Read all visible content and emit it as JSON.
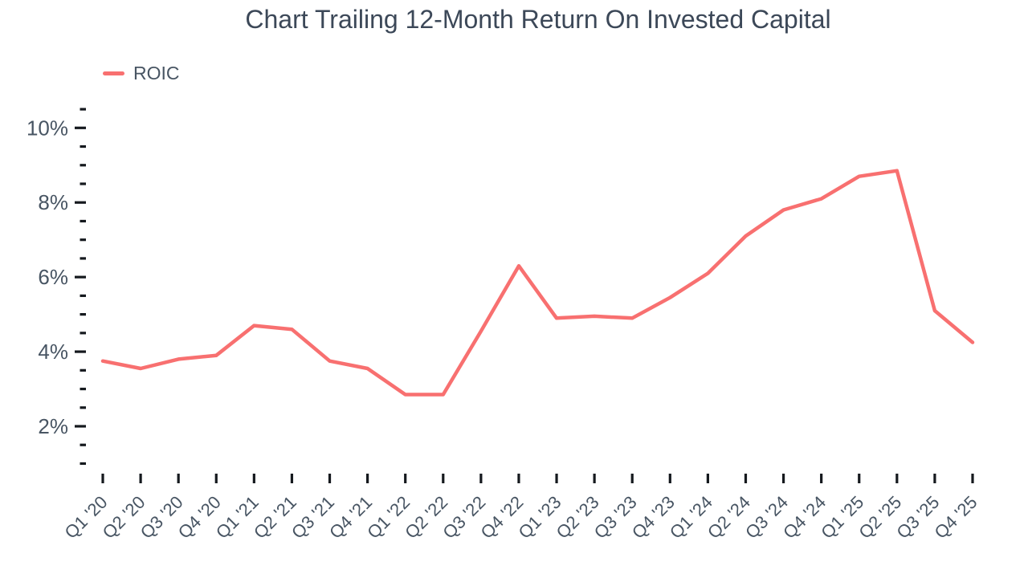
{
  "title": "Chart Trailing 12-Month Return On Invested Capital",
  "legend": {
    "series_label": "ROIC"
  },
  "colors": {
    "line": "#F87070",
    "title_text": "#3C4858",
    "axis_label": "#485563",
    "tick": "#15191E",
    "background": "#FFFFFF"
  },
  "chart_data": {
    "type": "line",
    "title": "Chart Trailing 12-Month Return On Invested Capital",
    "xlabel": "",
    "ylabel": "",
    "grid": false,
    "legend_position": "top-left",
    "categories": [
      "Q1 '20",
      "Q2 '20",
      "Q3 '20",
      "Q4 '20",
      "Q1 '21",
      "Q2 '21",
      "Q3 '21",
      "Q4 '21",
      "Q1 '22",
      "Q2 '22",
      "Q3 '22",
      "Q4 '22",
      "Q1 '23",
      "Q2 '23",
      "Q3 '23",
      "Q4 '23",
      "Q1 '24",
      "Q2 '24",
      "Q3 '24",
      "Q4 '24",
      "Q1 '25",
      "Q2 '25",
      "Q3 '25",
      "Q4 '25"
    ],
    "series": [
      {
        "name": "ROIC",
        "color": "#F87070",
        "values": [
          3.75,
          3.55,
          3.8,
          3.9,
          4.7,
          4.6,
          3.75,
          3.55,
          2.85,
          2.85,
          4.55,
          6.3,
          4.9,
          4.95,
          4.9,
          5.45,
          6.1,
          7.1,
          7.8,
          8.1,
          8.7,
          8.85,
          5.1,
          4.25
        ]
      }
    ],
    "y_axis": {
      "unit": "%",
      "min": 1.0,
      "max": 10.5,
      "minor_tick_step": 0.5,
      "major_ticks": [
        2,
        4,
        6,
        8,
        10
      ],
      "major_tick_labels": [
        "2%",
        "4%",
        "6%",
        "8%",
        "10%"
      ]
    }
  }
}
